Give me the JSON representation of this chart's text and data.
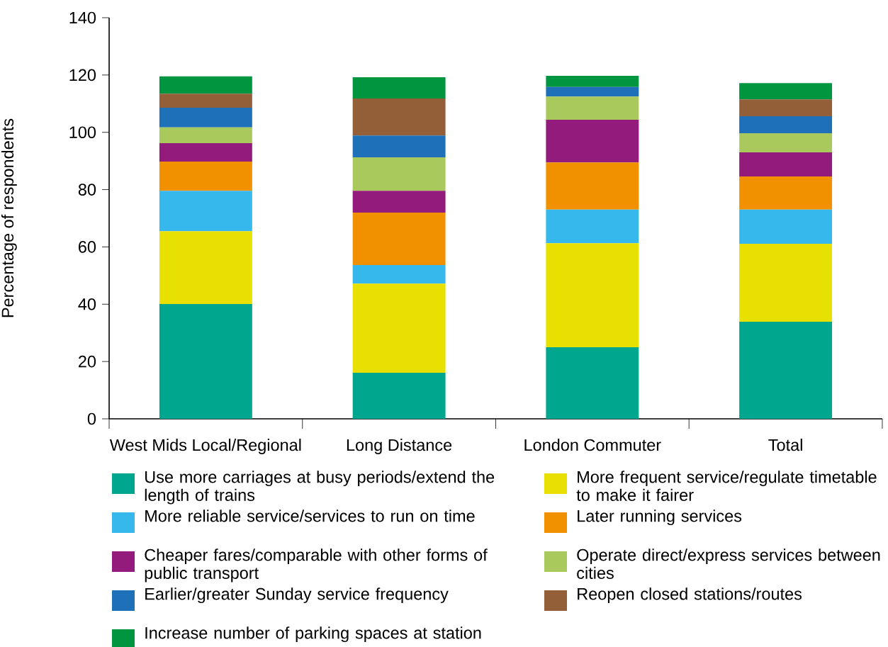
{
  "chart_data": {
    "type": "bar",
    "stacked": true,
    "ylabel": "Percentage of respondents",
    "categories": [
      "West Mids Local/Regional",
      "Long Distance",
      "London Commuter",
      "Total"
    ],
    "series": [
      {
        "name": "Use more carriages at busy periods/extend the length of trains",
        "color": "#00a78e",
        "values": [
          40.1,
          16.1,
          25.0,
          33.9
        ]
      },
      {
        "name": "More frequent service/regulate timetable to make it fairer",
        "color": "#e8e000",
        "values": [
          25.4,
          31.1,
          36.3,
          27.2
        ]
      },
      {
        "name": "More reliable service/services to run on time",
        "color": "#36b8ec",
        "values": [
          14.1,
          6.5,
          11.7,
          11.9
        ]
      },
      {
        "name": "Later running services",
        "color": "#f29100",
        "values": [
          10.2,
          18.3,
          16.5,
          11.6
        ]
      },
      {
        "name": "Cheaper fares/comparable with other forms of public transport",
        "color": "#931b7b",
        "values": [
          6.4,
          7.6,
          14.9,
          8.4
        ]
      },
      {
        "name": "Operate direct/express services between cities",
        "color": "#aac95d",
        "values": [
          5.5,
          11.7,
          8.1,
          6.7
        ]
      },
      {
        "name": "Earlier/greater Sunday service frequency",
        "color": "#1e70b8",
        "values": [
          6.9,
          7.6,
          3.3,
          5.9
        ]
      },
      {
        "name": "Reopen closed stations/routes",
        "color": "#935f38",
        "values": [
          4.9,
          12.9,
          0,
          5.9
        ]
      },
      {
        "name": "Increase number of parking spaces at station",
        "color": "#00953f",
        "values": [
          6.0,
          7.4,
          3.9,
          5.7
        ]
      }
    ],
    "ylim": [
      0,
      140
    ],
    "yticks": [
      0,
      20,
      40,
      60,
      80,
      100,
      120,
      140
    ],
    "grid": false,
    "legend": "bottom"
  }
}
